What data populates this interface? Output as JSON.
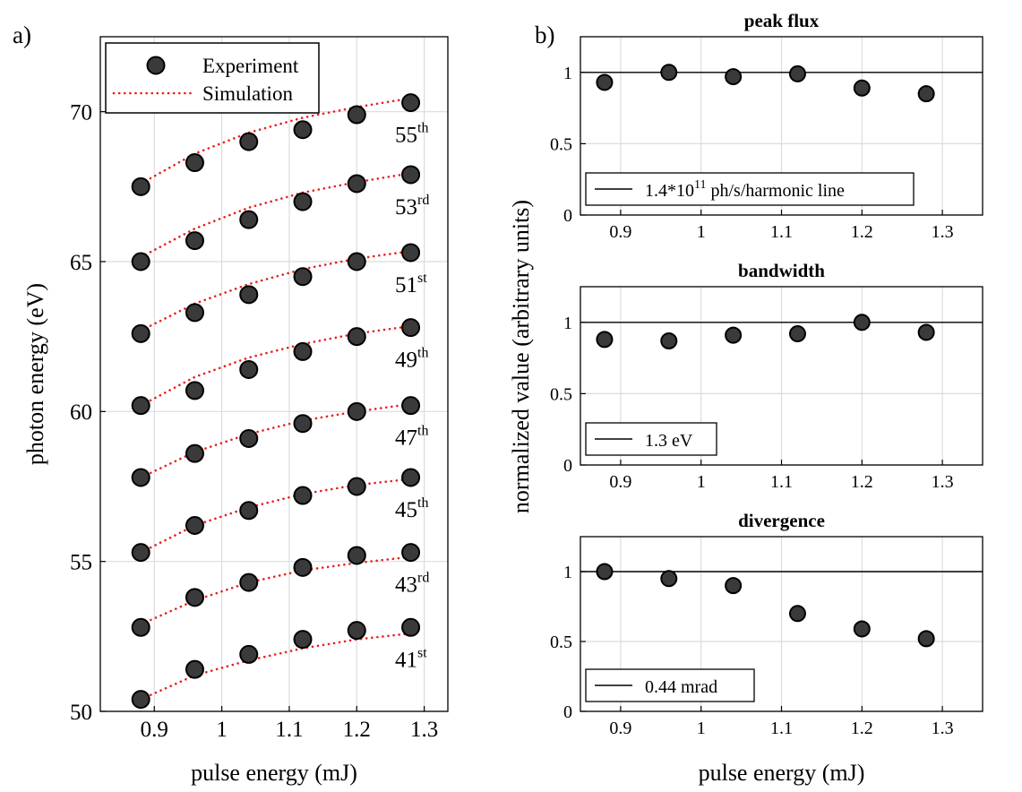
{
  "colors": {
    "marker_fill": "#3a3a3a",
    "marker_stroke": "#000000",
    "simulation": "#e8201c",
    "grid": "#dcdcdc",
    "axis": "#000000",
    "reference": "#000000"
  },
  "panel_labels": {
    "a": "a)",
    "b": "b)"
  },
  "shared_ylabel_b": "normalized value (arbitrary units)",
  "chart_data": [
    {
      "id": "a",
      "type": "scatter",
      "xlabel": "pulse energy (mJ)",
      "ylabel": "photon energy (eV)",
      "xlim": [
        0.82,
        1.335
      ],
      "ylim": [
        50,
        72.5
      ],
      "xticks": [
        0.9,
        1,
        1.1,
        1.2,
        1.3
      ],
      "xtick_labels": [
        "0.9",
        "1",
        "1.1",
        "1.2",
        "1.3"
      ],
      "yticks": [
        50,
        55,
        60,
        65,
        70
      ],
      "ytick_labels": [
        "50",
        "55",
        "60",
        "65",
        "70"
      ],
      "grid": true,
      "legend": {
        "position": "top-left",
        "entries": [
          {
            "label": "Experiment",
            "style": "marker"
          },
          {
            "label": "Simulation",
            "style": "dotted-line"
          }
        ]
      },
      "x": [
        0.88,
        0.96,
        1.04,
        1.12,
        1.2,
        1.28
      ],
      "series": [
        {
          "order": "41",
          "suffix": "st",
          "experiment": [
            50.4,
            51.4,
            51.9,
            52.4,
            52.7,
            52.8
          ],
          "simulation": [
            50.4,
            51.2,
            51.7,
            52.1,
            52.4,
            52.6
          ]
        },
        {
          "order": "43",
          "suffix": "rd",
          "experiment": [
            52.8,
            53.8,
            54.3,
            54.8,
            55.2,
            55.3
          ],
          "simulation": [
            52.9,
            53.7,
            54.3,
            54.7,
            54.95,
            55.15
          ]
        },
        {
          "order": "45",
          "suffix": "th",
          "experiment": [
            55.3,
            56.2,
            56.7,
            57.2,
            57.5,
            57.8
          ],
          "simulation": [
            55.3,
            56.2,
            56.8,
            57.25,
            57.55,
            57.75
          ]
        },
        {
          "order": "47",
          "suffix": "th",
          "experiment": [
            57.8,
            58.6,
            59.1,
            59.6,
            60.0,
            60.2
          ],
          "simulation": [
            57.8,
            58.65,
            59.25,
            59.7,
            60.0,
            60.25
          ]
        },
        {
          "order": "49",
          "suffix": "th",
          "experiment": [
            60.2,
            60.7,
            61.4,
            62.0,
            62.5,
            62.8
          ],
          "simulation": [
            60.2,
            61.15,
            61.8,
            62.25,
            62.6,
            62.85
          ]
        },
        {
          "order": "51",
          "suffix": "st",
          "experiment": [
            62.6,
            63.3,
            63.9,
            64.5,
            65.0,
            65.3
          ],
          "simulation": [
            62.7,
            63.6,
            64.25,
            64.75,
            65.1,
            65.35
          ]
        },
        {
          "order": "53",
          "suffix": "rd",
          "experiment": [
            65.0,
            65.7,
            66.4,
            67.0,
            67.6,
            67.9
          ],
          "simulation": [
            65.15,
            66.1,
            66.8,
            67.3,
            67.65,
            67.95
          ]
        },
        {
          "order": "55",
          "suffix": "th",
          "experiment": [
            67.5,
            68.3,
            69.0,
            69.4,
            69.9,
            70.3
          ],
          "simulation": [
            67.6,
            68.6,
            69.3,
            69.8,
            70.15,
            70.45
          ]
        }
      ]
    },
    {
      "id": "b1",
      "type": "scatter",
      "title": "peak flux",
      "xlabel": "",
      "ylabel": "",
      "xlim": [
        0.85,
        1.35
      ],
      "ylim": [
        0,
        1.25
      ],
      "xticks": [
        0.9,
        1,
        1.1,
        1.2,
        1.3
      ],
      "xtick_labels": [
        "0.9",
        "1",
        "1.1",
        "1.2",
        "1.3"
      ],
      "yticks": [
        0,
        0.5,
        1
      ],
      "ytick_labels": [
        "0",
        "0.5",
        "1"
      ],
      "grid": true,
      "reference_line": 1,
      "legend": {
        "position": "bottom-left",
        "label_base": "1.4*10",
        "label_exp": "11",
        "label_rest": " ph/s/harmonic line"
      },
      "x": [
        0.88,
        0.96,
        1.04,
        1.12,
        1.2,
        1.28
      ],
      "values": [
        0.93,
        1.0,
        0.97,
        0.99,
        0.89,
        0.85
      ]
    },
    {
      "id": "b2",
      "type": "scatter",
      "title": "bandwidth",
      "xlabel": "",
      "ylabel": "",
      "xlim": [
        0.85,
        1.35
      ],
      "ylim": [
        0,
        1.25
      ],
      "xticks": [
        0.9,
        1,
        1.1,
        1.2,
        1.3
      ],
      "xtick_labels": [
        "0.9",
        "1",
        "1.1",
        "1.2",
        "1.3"
      ],
      "yticks": [
        0,
        0.5,
        1
      ],
      "ytick_labels": [
        "0",
        "0.5",
        "1"
      ],
      "grid": true,
      "reference_line": 1,
      "legend": {
        "position": "bottom-left",
        "label_base": "1.3 eV",
        "label_exp": "",
        "label_rest": ""
      },
      "x": [
        0.88,
        0.96,
        1.04,
        1.12,
        1.2,
        1.28
      ],
      "values": [
        0.88,
        0.87,
        0.91,
        0.92,
        1.0,
        0.93
      ]
    },
    {
      "id": "b3",
      "type": "scatter",
      "title": "divergence",
      "xlabel": "pulse energy (mJ)",
      "ylabel": "",
      "xlim": [
        0.85,
        1.35
      ],
      "ylim": [
        0,
        1.25
      ],
      "xticks": [
        0.9,
        1,
        1.1,
        1.2,
        1.3
      ],
      "xtick_labels": [
        "0.9",
        "1",
        "1.1",
        "1.2",
        "1.3"
      ],
      "yticks": [
        0,
        0.5,
        1
      ],
      "ytick_labels": [
        "0",
        "0.5",
        "1"
      ],
      "grid": true,
      "reference_line": 1,
      "legend": {
        "position": "bottom-left",
        "label_base": "0.44 mrad",
        "label_exp": "",
        "label_rest": ""
      },
      "x": [
        0.88,
        0.96,
        1.04,
        1.12,
        1.2,
        1.28
      ],
      "values": [
        1.0,
        0.95,
        0.9,
        0.7,
        0.59,
        0.52
      ]
    }
  ]
}
